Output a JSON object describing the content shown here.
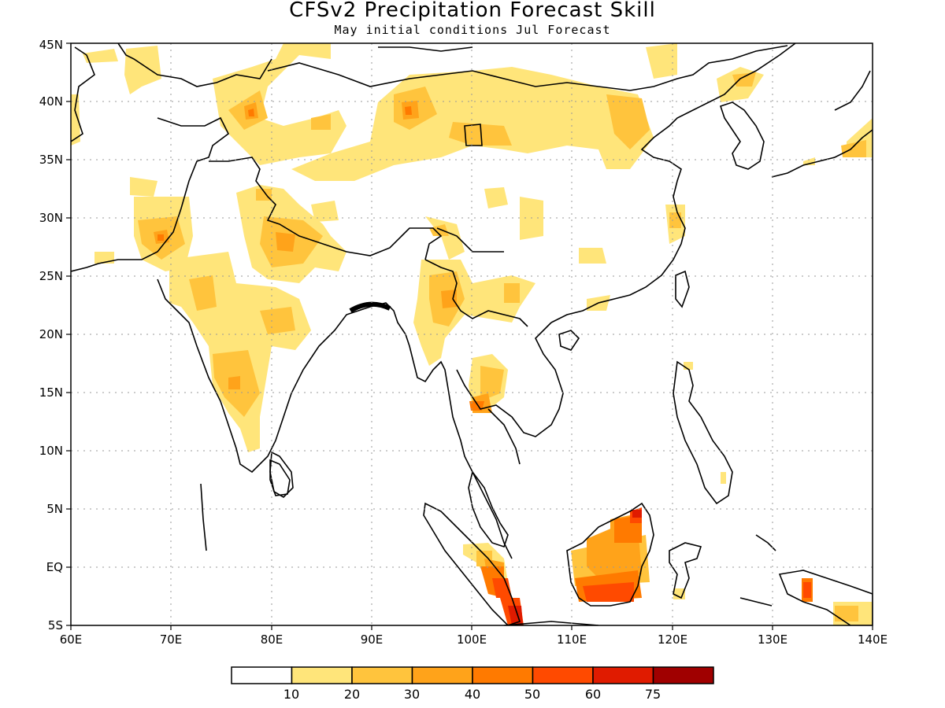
{
  "title": "CFSv2 Precipitation Forecast Skill",
  "subtitle": "May initial conditions  Jul Forecast",
  "map": {
    "lon_range": [
      60,
      140
    ],
    "lat_range": [
      -5,
      45
    ],
    "lon_ticks": [
      "60E",
      "70E",
      "80E",
      "90E",
      "100E",
      "110E",
      "120E",
      "130E",
      "140E"
    ],
    "lat_ticks": [
      "5S",
      "EQ",
      "5N",
      "10N",
      "15N",
      "20N",
      "25N",
      "30N",
      "35N",
      "40N",
      "45N"
    ],
    "grid": "dotted"
  },
  "colorbar": {
    "labels": [
      "10",
      "20",
      "30",
      "40",
      "50",
      "60",
      "75"
    ],
    "colors": [
      "#ffffff",
      "#ffe57a",
      "#ffc43d",
      "#ffa31a",
      "#ff7a00",
      "#ff4a00",
      "#e01b00",
      "#a00000"
    ]
  }
}
